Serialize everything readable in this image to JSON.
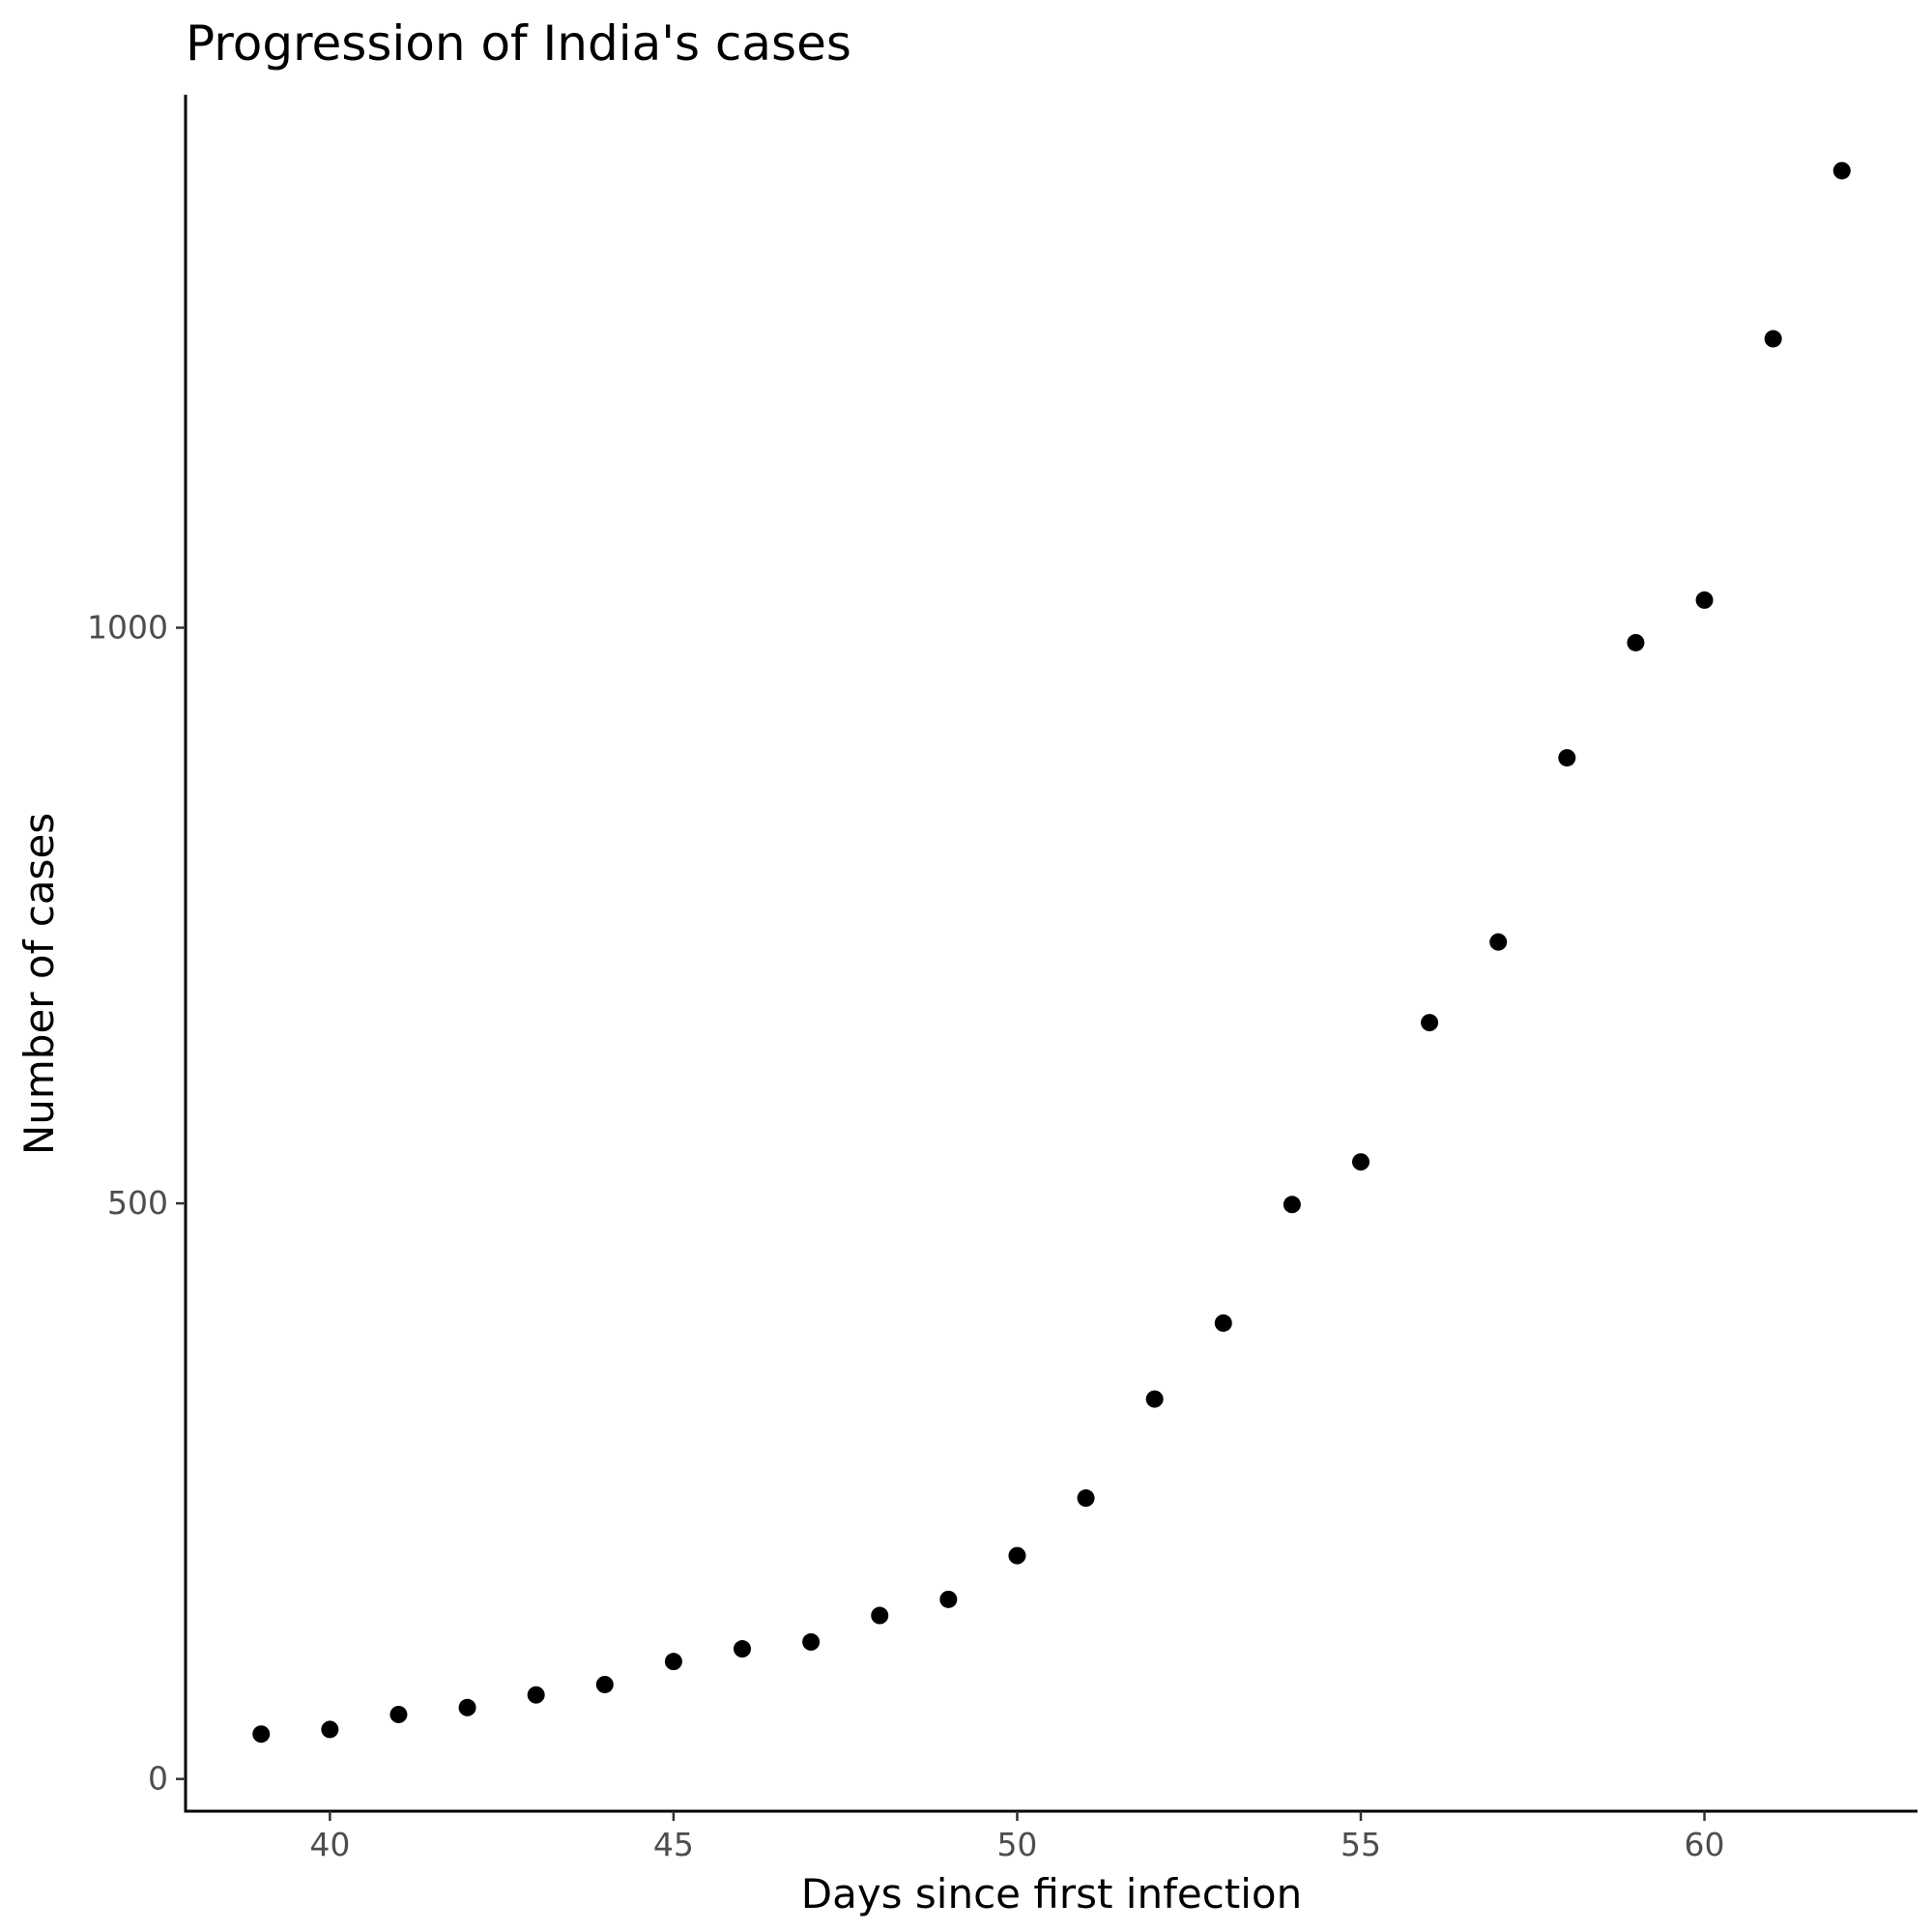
{
  "chart_data": {
    "type": "scatter",
    "title": "Progression of India's cases",
    "xlabel": "Days since first infection",
    "ylabel": "Number of cases",
    "xlim": [
      37.9,
      63.1
    ],
    "ylim": [
      -28,
      1463
    ],
    "x_ticks": [
      40,
      45,
      50,
      55,
      60
    ],
    "y_ticks": [
      0,
      500,
      1000
    ],
    "grid": false,
    "legend": "none",
    "point_color": "#000000",
    "x": [
      39,
      40,
      41,
      42,
      43,
      44,
      45,
      46,
      47,
      48,
      49,
      50,
      51,
      52,
      53,
      54,
      55,
      56,
      57,
      58,
      59,
      60,
      61,
      62
    ],
    "y": [
      39,
      43,
      56,
      62,
      73,
      82,
      102,
      113,
      119,
      142,
      156,
      194,
      244,
      330,
      396,
      499,
      536,
      657,
      727,
      887,
      987,
      1024,
      1251,
      1397
    ]
  }
}
